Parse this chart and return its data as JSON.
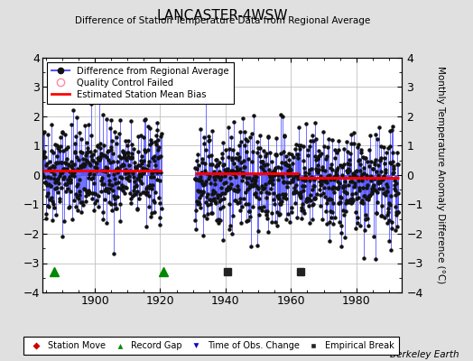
{
  "title": "LANCASTER-4WSW",
  "subtitle": "Difference of Station Temperature Data from Regional Average",
  "ylabel_right": "Monthly Temperature Anomaly Difference (°C)",
  "credit": "Berkeley Earth",
  "xlim": [
    1884,
    1994
  ],
  "ylim": [
    -4,
    4
  ],
  "yticks": [
    -4,
    -3,
    -2,
    -1,
    0,
    1,
    2,
    3,
    4
  ],
  "xticks": [
    1900,
    1920,
    1940,
    1960,
    1980
  ],
  "background_color": "#e0e0e0",
  "plot_bg_color": "#ffffff",
  "grid_color": "#c0c0c0",
  "data_line_color": "#5555ff",
  "data_marker_color": "#111111",
  "bias_line_color": "#ff0000",
  "record_gap_color": "#008800",
  "empirical_break_color": "#222222",
  "station_move_color": "#cc0000",
  "obs_change_color": "#0000cc",
  "seed": 42,
  "x_start": 1884.0,
  "x_end": 1993.0,
  "gap_start": 1920.5,
  "gap_end": 1930.5,
  "bias_segments": [
    {
      "x_start": 1884.0,
      "x_end": 1920.5,
      "bias": 0.15
    },
    {
      "x_start": 1930.5,
      "x_end": 1962.5,
      "bias": 0.05
    },
    {
      "x_start": 1962.5,
      "x_end": 1993.0,
      "bias": -0.1
    }
  ],
  "record_gaps": [
    1887.5,
    1921.0
  ],
  "empirical_breaks": [
    1940.5,
    1963.0
  ],
  "std_dev": 0.85,
  "trend_slope": -0.003
}
